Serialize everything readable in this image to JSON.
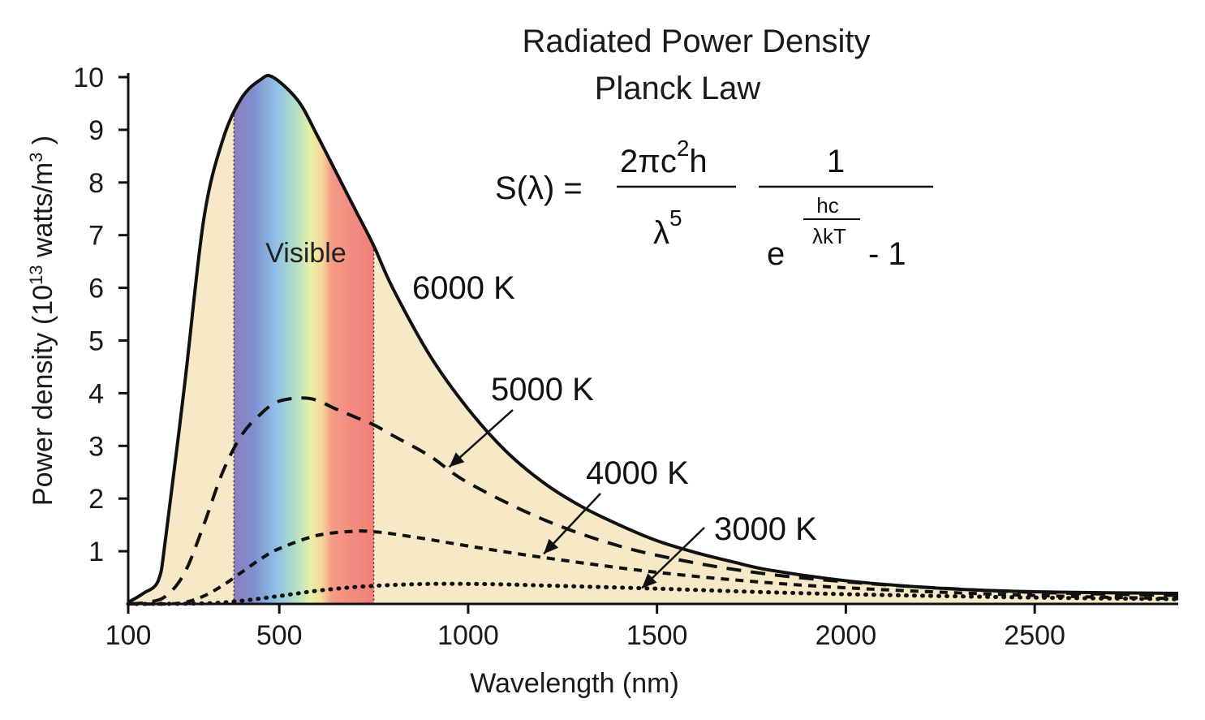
{
  "chart_data": {
    "type": "line",
    "title": "Radiated Power Density",
    "subtitle": "Planck Law",
    "xlabel": "Wavelength (nm)",
    "ylabel": "Power density (10^13 watts/m^3)",
    "ylabel_parts": {
      "prefix": "Power density (10",
      "exp1": "13",
      "mid": " watts/m",
      "exp2": "3",
      "suffix": " )"
    },
    "xlim": [
      100,
      2880
    ],
    "ylim": [
      0,
      10
    ],
    "x_ticks": [
      100,
      500,
      1000,
      1500,
      2000,
      2500
    ],
    "y_ticks": [
      1,
      2,
      3,
      4,
      5,
      6,
      7,
      8,
      9,
      10
    ],
    "visible_band": {
      "label": "Visible",
      "start": 380,
      "end": 750
    },
    "formula": {
      "lhs": "S(λ) =",
      "num1": "2πc",
      "num1_exp": "2",
      "num1_tail": "h",
      "den1": "λ",
      "den1_exp": "5",
      "num2": "1",
      "den2_base": "e",
      "den2_exp_num": "hc",
      "den2_exp_den": "λkT",
      "den2_tail": "- 1"
    },
    "series": [
      {
        "name": "6000 K",
        "style": "solid",
        "x": [
          100,
          140,
          180,
          200,
          250,
          300,
          350,
          400,
          450,
          483,
          550,
          600,
          650,
          700,
          750,
          800,
          900,
          1000,
          1100,
          1200,
          1300,
          1400,
          1500,
          1600,
          1700,
          1800,
          2000,
          2200,
          2400,
          2600,
          2880
        ],
        "y": [
          0.03,
          0.2,
          0.45,
          1.3,
          4.2,
          7.3,
          8.8,
          9.6,
          9.95,
          10.0,
          9.55,
          8.9,
          8.2,
          7.5,
          6.8,
          6.0,
          4.7,
          3.7,
          2.9,
          2.3,
          1.85,
          1.5,
          1.2,
          0.98,
          0.8,
          0.64,
          0.44,
          0.32,
          0.25,
          0.22,
          0.2
        ]
      },
      {
        "name": "5000 K",
        "style": "dashed",
        "x": [
          100,
          150,
          200,
          250,
          300,
          350,
          400,
          450,
          500,
          580,
          650,
          700,
          750,
          800,
          900,
          1000,
          1200,
          1400,
          1600,
          1800,
          2000,
          2200,
          2500,
          2880
        ],
        "y": [
          0.0,
          0.03,
          0.15,
          0.6,
          1.5,
          2.5,
          3.2,
          3.6,
          3.85,
          3.9,
          3.7,
          3.55,
          3.4,
          3.2,
          2.8,
          2.3,
          1.6,
          1.1,
          0.78,
          0.56,
          0.42,
          0.32,
          0.22,
          0.16
        ]
      },
      {
        "name": "4000 K",
        "style": "short-dashed",
        "x": [
          100,
          200,
          250,
          300,
          350,
          400,
          450,
          500,
          600,
          700,
          750,
          800,
          900,
          1000,
          1200,
          1500,
          1800,
          2100,
          2500,
          2880
        ],
        "y": [
          0.0,
          0.0,
          0.03,
          0.15,
          0.35,
          0.6,
          0.85,
          1.05,
          1.3,
          1.38,
          1.37,
          1.33,
          1.22,
          1.1,
          0.88,
          0.6,
          0.4,
          0.27,
          0.16,
          0.1
        ]
      },
      {
        "name": "3000 K",
        "style": "dotted",
        "x": [
          100,
          300,
          400,
          500,
          600,
          700,
          800,
          900,
          1000,
          1100,
          1200,
          1500,
          1800,
          2100,
          2500,
          2880
        ],
        "y": [
          0.0,
          0.01,
          0.06,
          0.15,
          0.25,
          0.32,
          0.36,
          0.38,
          0.38,
          0.37,
          0.35,
          0.29,
          0.22,
          0.17,
          0.12,
          0.09
        ]
      }
    ],
    "curve_labels": [
      {
        "text": "6000 K",
        "arrow": false
      },
      {
        "text": "5000 K",
        "arrow": true,
        "to_x": 950,
        "to_y": 2.6
      },
      {
        "text": "4000 K",
        "arrow": true,
        "to_x": 1200,
        "to_y": 0.95
      },
      {
        "text": "3000 K",
        "arrow": true,
        "to_x": 1460,
        "to_y": 0.3
      }
    ],
    "colors": {
      "fill": "#f7e8c8",
      "curve": "#111111",
      "axis": "#111111"
    }
  }
}
